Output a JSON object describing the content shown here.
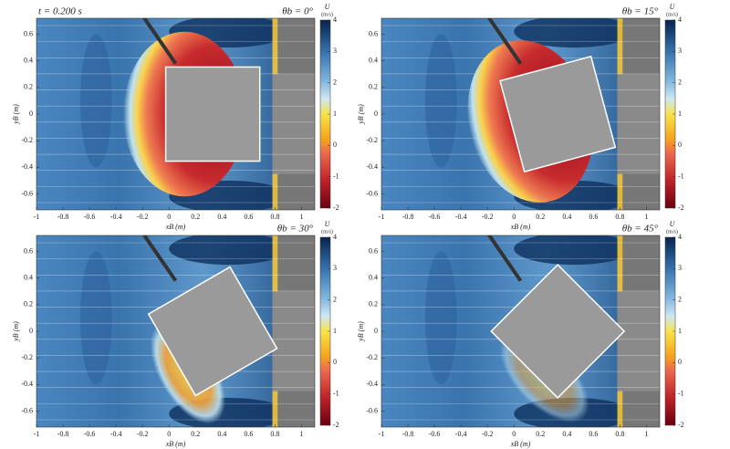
{
  "chart_data": [
    {
      "type": "contour",
      "annotation": "t = 0.200 s",
      "title": "θb = 0°",
      "theta_b": 0,
      "xlabel": "xB (m)",
      "ylabel": "yB (m)",
      "xlim": [
        -1,
        1.1
      ],
      "ylim": [
        -0.72,
        0.72
      ],
      "xticks": [
        -1,
        -0.8,
        -0.6,
        -0.4,
        -0.2,
        0,
        0.2,
        0.4,
        0.6,
        0.8,
        1
      ],
      "yticks": [
        -0.6,
        -0.4,
        -0.2,
        0,
        0.2,
        0.4,
        0.6
      ],
      "colorbar": {
        "label": "U",
        "unit": "(m/s)",
        "lim": [
          -2,
          4
        ],
        "ticks": [
          -2,
          -1,
          0,
          1,
          2,
          3,
          4
        ]
      }
    },
    {
      "type": "contour",
      "title": "θb = 15°",
      "theta_b": 15,
      "xlabel": "xB (m)",
      "ylabel": "yB (m)",
      "xlim": [
        -1,
        1.1
      ],
      "ylim": [
        -0.72,
        0.72
      ],
      "xticks": [
        -1,
        -0.8,
        -0.6,
        -0.4,
        -0.2,
        0,
        0.2,
        0.4,
        0.6,
        0.8,
        1
      ],
      "yticks": [
        -0.6,
        -0.4,
        -0.2,
        0,
        0.2,
        0.4,
        0.6
      ],
      "colorbar": {
        "label": "U",
        "unit": "(m/s)",
        "lim": [
          -2,
          4
        ],
        "ticks": [
          -2,
          -1,
          0,
          1,
          2,
          3,
          4
        ]
      }
    },
    {
      "type": "contour",
      "title": "θb = 30°",
      "theta_b": 30,
      "xlabel": "xB (m)",
      "ylabel": "yB (m)",
      "xlim": [
        -1,
        1.1
      ],
      "ylim": [
        -0.72,
        0.72
      ],
      "xticks": [
        -1,
        -0.8,
        -0.6,
        -0.4,
        -0.2,
        0,
        0.2,
        0.4,
        0.6,
        0.8,
        1
      ],
      "yticks": [
        -0.6,
        -0.4,
        -0.2,
        0,
        0.2,
        0.4,
        0.6
      ],
      "colorbar": {
        "label": "U",
        "unit": "(m/s)",
        "lim": [
          -2,
          4
        ],
        "ticks": [
          -2,
          -1,
          0,
          1,
          2,
          3,
          4
        ]
      }
    },
    {
      "type": "contour",
      "title": "θb = 45°",
      "theta_b": 45,
      "xlabel": "xB (m)",
      "ylabel": "yB (m)",
      "xlim": [
        -1,
        1.1
      ],
      "ylim": [
        -0.72,
        0.72
      ],
      "xticks": [
        -1,
        -0.8,
        -0.6,
        -0.4,
        -0.2,
        0,
        0.2,
        0.4,
        0.6,
        0.8,
        1
      ],
      "yticks": [
        -0.6,
        -0.4,
        -0.2,
        0,
        0.2,
        0.4,
        0.6
      ],
      "colorbar": {
        "label": "U",
        "unit": "(m/s)",
        "lim": [
          -2,
          4
        ],
        "ticks": [
          -2,
          -1,
          0,
          1,
          2,
          3,
          4
        ]
      }
    }
  ]
}
